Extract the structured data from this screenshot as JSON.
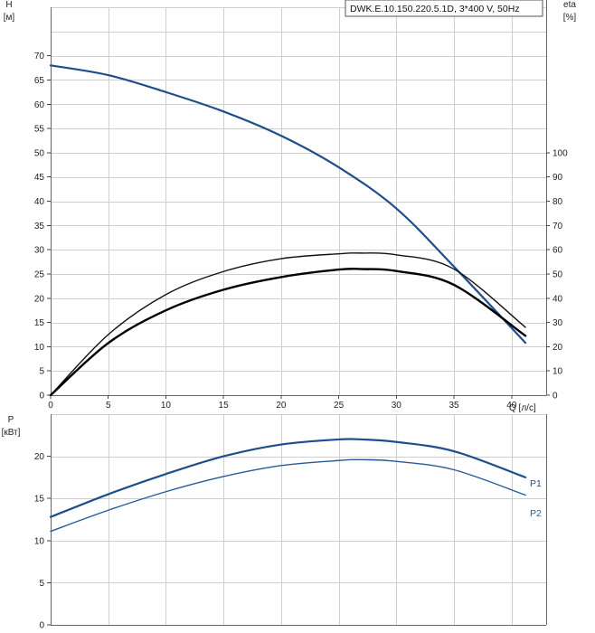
{
  "chart_data": [
    {
      "type": "line",
      "title": "DWK.E.10.150.220.5.1D, 3*400 V, 50Hz",
      "xlabel": "Q [л/с]",
      "xlim": [
        0,
        43
      ],
      "x_ticks": [
        0,
        5,
        10,
        15,
        20,
        25,
        30,
        35,
        40
      ],
      "ylabel_left": [
        "H",
        "[м]"
      ],
      "ylim_left": [
        0,
        80
      ],
      "y_ticks_left": [
        0,
        5,
        10,
        15,
        20,
        25,
        30,
        35,
        40,
        45,
        50,
        55,
        60,
        65,
        70
      ],
      "ylabel_right": [
        "eta",
        "[%]"
      ],
      "ylim_right": [
        0,
        160
      ],
      "y_ticks_right": [
        0,
        10,
        20,
        30,
        40,
        50,
        60,
        70,
        80,
        90,
        100
      ],
      "grid": true,
      "series": [
        {
          "axis": "left",
          "color": "#1f4e8c",
          "x": [
            0,
            5,
            10,
            15,
            20,
            25,
            30,
            35,
            41.2
          ],
          "y": [
            68,
            66,
            62.5,
            58.5,
            53.5,
            47,
            38.5,
            26.5,
            10.8
          ]
        },
        {
          "axis": "right",
          "color": "#111111",
          "x": [
            0,
            5,
            10,
            15,
            20,
            25,
            27,
            30,
            35,
            41.2
          ],
          "y": [
            0,
            25,
            41.5,
            51,
            56.3,
            58.3,
            58.6,
            57.9,
            52,
            28
          ]
        },
        {
          "axis": "right",
          "color": "#000000",
          "x": [
            0,
            5,
            10,
            15,
            20,
            25,
            27,
            30,
            35,
            41.2
          ],
          "y": [
            0,
            21.5,
            35,
            43.5,
            48.7,
            51.8,
            52,
            51.2,
            45.5,
            24.5
          ]
        }
      ]
    },
    {
      "type": "line",
      "ylabel": [
        "P",
        "[кВт]"
      ],
      "xlim": [
        0,
        43
      ],
      "ylim": [
        0,
        25
      ],
      "y_ticks": [
        0,
        5,
        10,
        15,
        20
      ],
      "grid": true,
      "series": [
        {
          "name": "P1",
          "color": "#1f4e8c",
          "x": [
            0,
            5,
            10,
            15,
            20,
            25,
            27,
            30,
            35,
            41.2
          ],
          "y": [
            12.8,
            15.5,
            17.9,
            20,
            21.4,
            22,
            22,
            21.7,
            20.6,
            17.5
          ]
        },
        {
          "name": "P2",
          "color": "#2a5a96",
          "x": [
            0,
            5,
            10,
            15,
            20,
            25,
            27,
            30,
            35,
            41.2
          ],
          "y": [
            11.1,
            13.6,
            15.8,
            17.6,
            18.9,
            19.5,
            19.6,
            19.4,
            18.4,
            15.4
          ]
        }
      ]
    }
  ]
}
